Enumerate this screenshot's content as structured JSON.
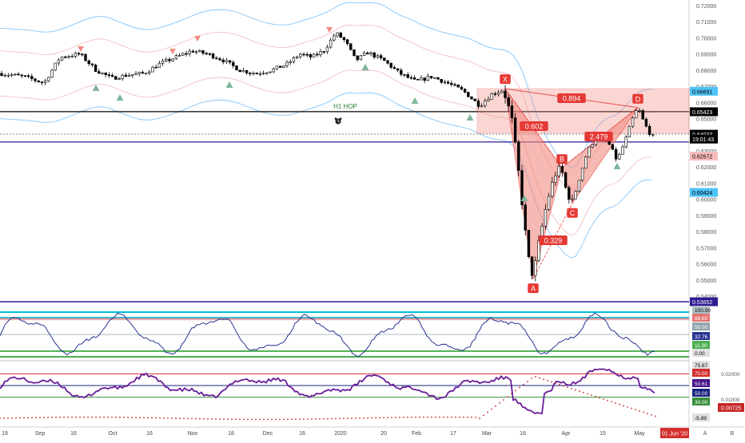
{
  "chart_data": {
    "type": "candlestick",
    "symbol_note": "forex pair daily",
    "price_axis": {
      "ticks": [
        "0.72000",
        "0.71000",
        "0.70000",
        "0.69000",
        "0.68000",
        "0.67000",
        "0.66000",
        "0.65000",
        "0.64000",
        "0.63000",
        "0.62000",
        "0.61000",
        "0.60000",
        "0.59000",
        "0.58000",
        "0.57000",
        "0.56000",
        "0.55000",
        "0.54000"
      ],
      "ylim": [
        0.535,
        0.725
      ]
    },
    "price_badges": [
      {
        "label": "0.66691",
        "value": 0.66691,
        "color": "#4FC3F7",
        "text_color": "#000000"
      },
      {
        "label": "0.65423",
        "value": 0.65423,
        "color": "#000000",
        "text_color": "#ffffff"
      },
      {
        "label": "0.64033",
        "value": 0.64033,
        "color": "#000000",
        "text_color": "#ffffff"
      },
      {
        "label": "19:01:43",
        "value": 0.6373,
        "color": "#000000",
        "text_color": "#ffffff"
      },
      {
        "label": "0.62672",
        "value": 0.62672,
        "color": "#F8BBBB",
        "text_color": "#000000"
      },
      {
        "label": "0.60424",
        "value": 0.60424,
        "color": "#4FC3F7",
        "text_color": "#000000"
      },
      {
        "label": "0.53652",
        "value": 0.53652,
        "color": "#311B92",
        "text_color": "#ffffff"
      }
    ],
    "x_axis_labels": [
      "19",
      "Sep",
      "16",
      "Oct",
      "16",
      "Nov",
      "18",
      "Dec",
      "16",
      "2020",
      "20",
      "Feb",
      "17",
      "Mar",
      "16",
      "Apr",
      "15",
      "May"
    ],
    "x_axis_marker": "01 Jun '20",
    "bottom_buttons": [
      "A",
      "B"
    ],
    "hline_levels": [
      {
        "value": 0.6543,
        "color": "#000000"
      },
      {
        "value": 0.6404,
        "color": "#555555",
        "dash": true
      },
      {
        "value": 0.6355,
        "color": "#311B92"
      }
    ],
    "annotation": {
      "label": "H1 HOP",
      "icon": "alarm-clock-icon"
    },
    "harmonic_pattern": {
      "points": [
        {
          "label": "X",
          "price": 0.6685
        },
        {
          "label": "A",
          "price": 0.5508
        },
        {
          "label": "B",
          "price": 0.6195
        },
        {
          "label": "C",
          "price": 0.5975
        },
        {
          "label": "D",
          "price": 0.6568
        }
      ],
      "ratios": [
        "0.602",
        "0.329",
        "2.479",
        "0.894"
      ],
      "prz_box": {
        "top": 0.6685,
        "bottom": 0.641
      }
    },
    "oscillator_1": {
      "badges": [
        "100.00",
        "88.60",
        "50.00",
        "32.76",
        "11.30",
        "0.00"
      ],
      "levels": [
        {
          "value": 88.6,
          "color": "#00BCD4"
        },
        {
          "value": 50,
          "color": "#90A4AE"
        },
        {
          "value": 11.3,
          "color": "#4CAF50"
        }
      ]
    },
    "oscillator_2": {
      "left_badges": [
        "75.67",
        "70.00",
        "50.61",
        "50.00",
        "30.00",
        "-5.89"
      ],
      "right_ticks": [
        "0.02000",
        "0.01000"
      ],
      "right_badge": "0.00725",
      "levels": [
        {
          "value": 70,
          "color": "#D32F2F"
        },
        {
          "value": 50,
          "color": "#1A237E"
        },
        {
          "value": 30,
          "color": "#388E3C"
        }
      ]
    },
    "colors": {
      "up": "#ffffff",
      "down": "#000000",
      "band_outer": "#90CAF9",
      "band_inner": "#EF9A9A",
      "pattern_fill": "#F28B82",
      "pattern_line": "#E53935",
      "osc_line": "#283593",
      "rsi_line": "#6A1B9A",
      "dots": "#C62828"
    },
    "grid": false
  }
}
